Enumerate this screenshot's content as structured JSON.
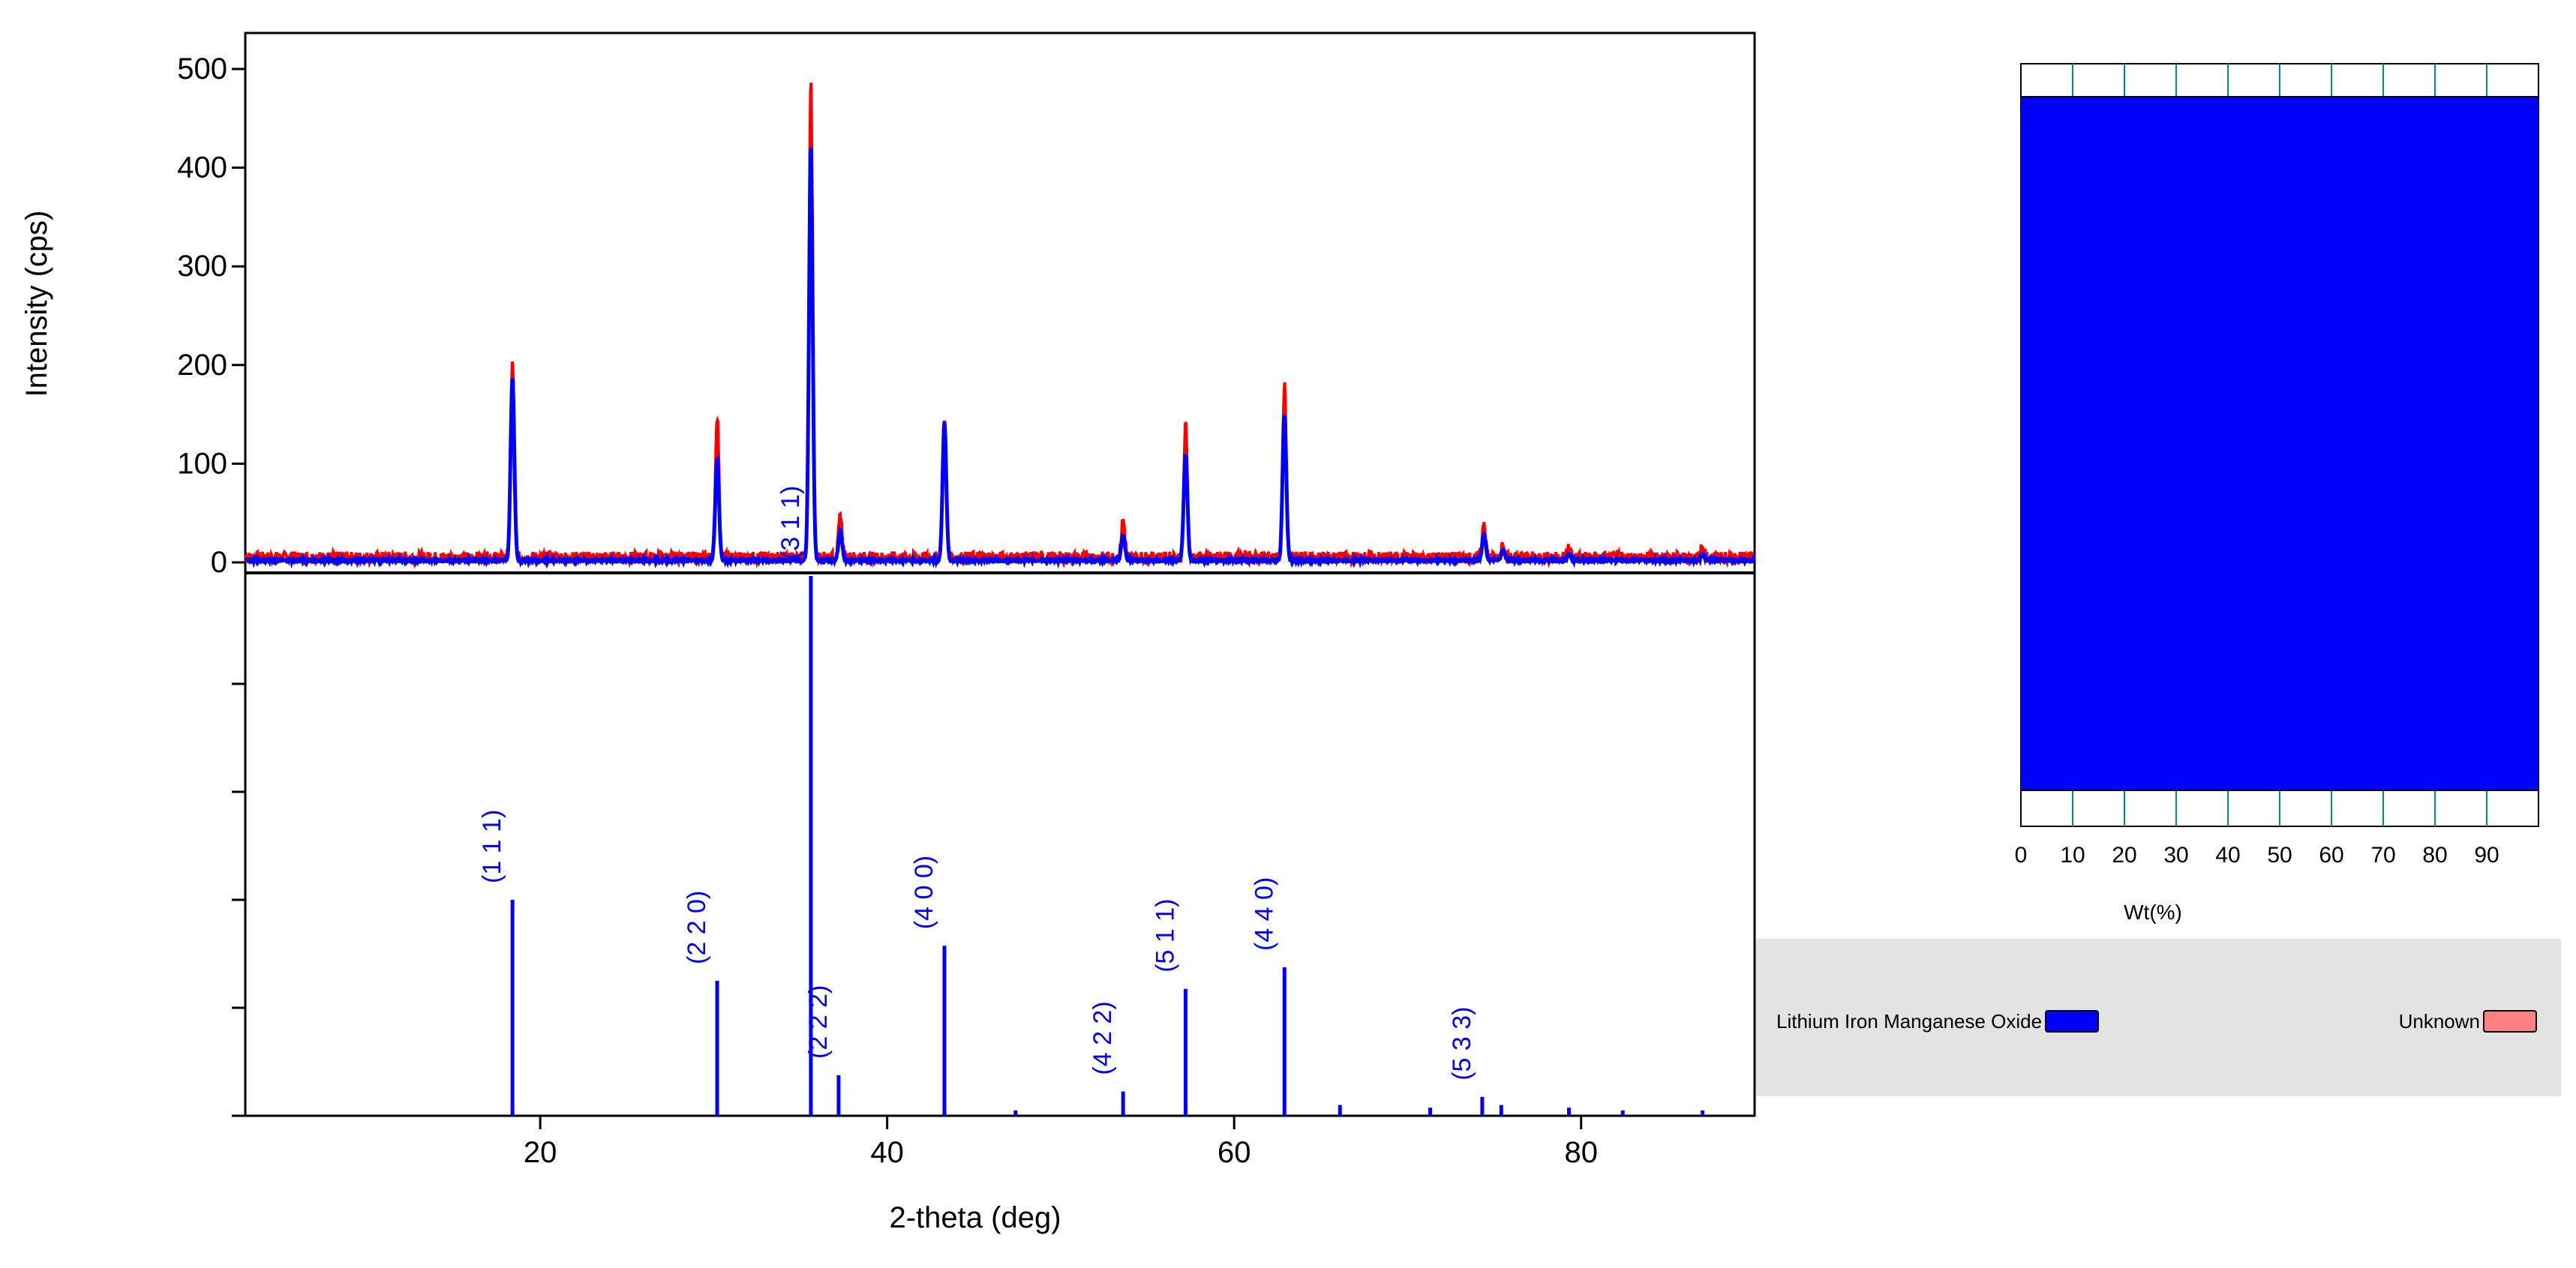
{
  "chart_data": [
    {
      "type": "line",
      "name": "xrd-pattern",
      "xlabel": "2-theta (deg)",
      "ylabel": "Intensity (cps)",
      "xlim": [
        3,
        90
      ],
      "ylim": [
        0,
        500
      ],
      "x_ticks": [
        "20",
        "40",
        "60",
        "80"
      ],
      "x_tick_values": [
        20,
        40,
        60,
        80
      ],
      "y_ticks": [
        "500",
        "400",
        "300",
        "200",
        "100",
        "0"
      ],
      "y_tick_values": [
        500,
        400,
        300,
        200,
        100,
        0
      ],
      "series": [
        {
          "role": "observed",
          "color": "#ff0000",
          "peaks": [
            {
              "x": 18.4,
              "y": 197
            },
            {
              "x": 30.2,
              "y": 145
            },
            {
              "x": 35.6,
              "y": 486
            },
            {
              "x": 37.3,
              "y": 42
            },
            {
              "x": 43.3,
              "y": 138
            },
            {
              "x": 53.6,
              "y": 38
            },
            {
              "x": 57.2,
              "y": 133
            },
            {
              "x": 62.9,
              "y": 175
            },
            {
              "x": 74.4,
              "y": 37
            },
            {
              "x": 75.5,
              "y": 15
            },
            {
              "x": 79.3,
              "y": 10
            },
            {
              "x": 87.0,
              "y": 10
            }
          ],
          "background": 5
        },
        {
          "role": "calculated",
          "color": "#0000ff",
          "peaks": [
            {
              "x": 18.4,
              "y": 185
            },
            {
              "x": 30.2,
              "y": 103
            },
            {
              "x": 35.6,
              "y": 420
            },
            {
              "x": 37.3,
              "y": 30
            },
            {
              "x": 43.3,
              "y": 140
            },
            {
              "x": 53.6,
              "y": 25
            },
            {
              "x": 57.2,
              "y": 107
            },
            {
              "x": 62.9,
              "y": 148
            },
            {
              "x": 74.4,
              "y": 26
            },
            {
              "x": 75.5,
              "y": 10
            },
            {
              "x": 79.3,
              "y": 6
            },
            {
              "x": 87.0,
              "y": 5
            }
          ],
          "background": 2
        }
      ]
    },
    {
      "type": "bar",
      "name": "reference-reflections",
      "color": "#0000ff",
      "ylim": [
        0,
        100
      ],
      "reflections": [
        {
          "x": 18.4,
          "value": 40,
          "label": "(1 1 1)"
        },
        {
          "x": 30.2,
          "value": 25,
          "label": "(2 2 0)"
        },
        {
          "x": 35.6,
          "value": 100,
          "label": "(3 1 1)"
        },
        {
          "x": 37.2,
          "value": 7.5,
          "label": "(2 2 2)"
        },
        {
          "x": 43.3,
          "value": 31.5,
          "label": "(4 0 0)"
        },
        {
          "x": 47.4,
          "value": 1,
          "label": ""
        },
        {
          "x": 53.6,
          "value": 4.5,
          "label": "(4 2 2)"
        },
        {
          "x": 57.2,
          "value": 23.5,
          "label": "(5 1 1)"
        },
        {
          "x": 62.9,
          "value": 27.5,
          "label": "(4 4 0)"
        },
        {
          "x": 66.1,
          "value": 2,
          "label": ""
        },
        {
          "x": 71.3,
          "value": 1.5,
          "label": ""
        },
        {
          "x": 74.3,
          "value": 3.5,
          "label": "(5 3 3)"
        },
        {
          "x": 75.4,
          "value": 2,
          "label": ""
        },
        {
          "x": 79.3,
          "value": 1.5,
          "label": ""
        },
        {
          "x": 82.4,
          "value": 1,
          "label": ""
        },
        {
          "x": 87.0,
          "value": 1,
          "label": ""
        }
      ]
    },
    {
      "type": "bar",
      "name": "phase-fraction",
      "xlabel": "Wt(%)",
      "x_ticks": [
        "0",
        "10",
        "20",
        "30",
        "40",
        "50",
        "60",
        "70",
        "80",
        "90"
      ],
      "x_tick_values": [
        0,
        10,
        20,
        30,
        40,
        50,
        60,
        70,
        80,
        90
      ],
      "xlim": [
        0,
        100
      ],
      "series": [
        {
          "name": "Lithium Iron Manganese Oxide",
          "value": 100,
          "color": "#0000ff"
        },
        {
          "name": "Unknown",
          "value": 0,
          "color": "#ff8080"
        }
      ]
    }
  ],
  "legend": {
    "items": [
      {
        "label": "Lithium Iron Manganese Oxide",
        "color": "#0000ff"
      },
      {
        "label": "Unknown",
        "color": "#ff8080"
      }
    ]
  }
}
